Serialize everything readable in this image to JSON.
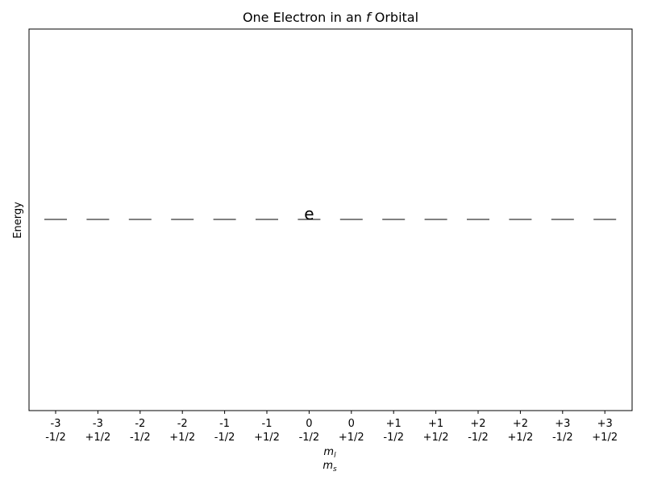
{
  "chart_data": {
    "type": "other",
    "title_prefix": "One Electron in an ",
    "title_italic": "f",
    "title_suffix": " Orbital",
    "ylabel": "Energy",
    "xlabel_line1": {
      "base": "m",
      "sub": "l"
    },
    "xlabel_line2": {
      "base": "m",
      "sub": "s"
    },
    "categories": [
      {
        "ml": "-3",
        "ms": "-1/2"
      },
      {
        "ml": "-3",
        "ms": "+1/2"
      },
      {
        "ml": "-2",
        "ms": "-1/2"
      },
      {
        "ml": "-2",
        "ms": "+1/2"
      },
      {
        "ml": "-1",
        "ms": "-1/2"
      },
      {
        "ml": "-1",
        "ms": "+1/2"
      },
      {
        "ml": "0",
        "ms": "-1/2"
      },
      {
        "ml": "0",
        "ms": "+1/2"
      },
      {
        "ml": "+1",
        "ms": "-1/2"
      },
      {
        "ml": "+1",
        "ms": "+1/2"
      },
      {
        "ml": "+2",
        "ms": "-1/2"
      },
      {
        "ml": "+2",
        "ms": "+1/2"
      },
      {
        "ml": "+3",
        "ms": "-1/2"
      },
      {
        "ml": "+3",
        "ms": "+1/2"
      }
    ],
    "occupied_index": 6,
    "electron_symbol": "e",
    "grid": false,
    "yticks": false
  }
}
